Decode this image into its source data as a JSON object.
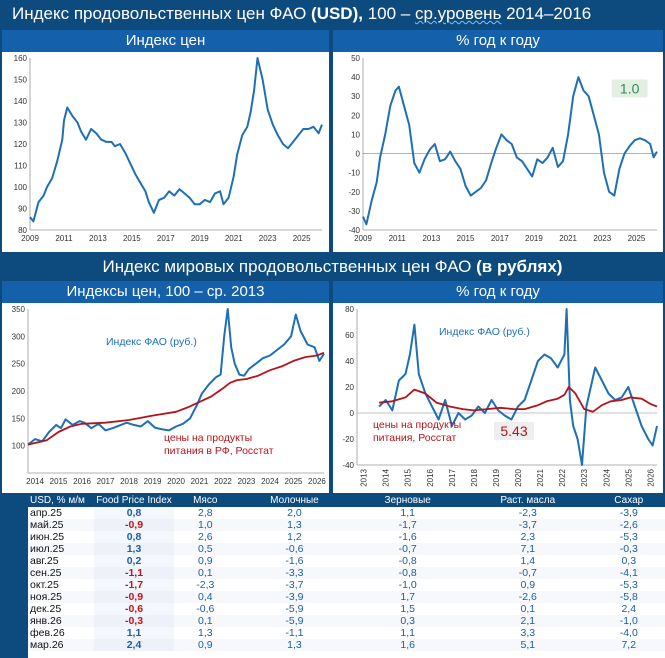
{
  "header": {
    "part1": "Индекс продовольственных цен ФАО ",
    "part2": "(USD),",
    "part3": " 100 – ",
    "part4": "ср.уровень",
    "part5": " 2014–2016"
  },
  "mid_title": {
    "part1": "Индекс мировых продовольственных цен ФАО ",
    "part2": "(в рублях)"
  },
  "colors": {
    "blue": "#1f6fb5",
    "red": "#b3141b",
    "header": "#1560ab",
    "bg": "#0d4a7e"
  },
  "chart_data": [
    {
      "type": "line",
      "title": "Индекс цен",
      "ylim": [
        80,
        160
      ],
      "yticks": [
        "80",
        "90",
        "100",
        "110",
        "120",
        "130",
        "140",
        "150",
        "160"
      ],
      "xticks": [
        "2009",
        "2011",
        "2013",
        "2015",
        "2017",
        "2019",
        "2021",
        "2023",
        "2025"
      ],
      "x_range": [
        2009,
        2026.2
      ],
      "series": [
        {
          "name": "FAO Food Price Index",
          "x": [
            2009,
            2009.2,
            2009.5,
            2009.8,
            2010,
            2010.3,
            2010.6,
            2010.9,
            2011,
            2011.2,
            2011.5,
            2011.8,
            2012,
            2012.3,
            2012.6,
            2012.9,
            2013.2,
            2013.5,
            2013.8,
            2014,
            2014.3,
            2014.6,
            2014.9,
            2015.2,
            2015.5,
            2015.8,
            2016,
            2016.3,
            2016.6,
            2016.9,
            2017.2,
            2017.5,
            2017.8,
            2018.1,
            2018.4,
            2018.7,
            2019,
            2019.3,
            2019.6,
            2019.9,
            2020.2,
            2020.4,
            2020.7,
            2021,
            2021.2,
            2021.5,
            2021.8,
            2022,
            2022.2,
            2022.4,
            2022.7,
            2023,
            2023.3,
            2023.6,
            2023.9,
            2024.2,
            2024.5,
            2024.8,
            2025.1,
            2025.4,
            2025.7,
            2026,
            2026.2
          ],
          "values": [
            86,
            84,
            93,
            96,
            100,
            104,
            112,
            122,
            131,
            137,
            133,
            130,
            126,
            122,
            127,
            125,
            122,
            121,
            121,
            119,
            120,
            116,
            111,
            106,
            102,
            98,
            93,
            88,
            94,
            95,
            98,
            96,
            99,
            97,
            95,
            92,
            92,
            94,
            93,
            97,
            98,
            92,
            95,
            105,
            115,
            124,
            128,
            135,
            145,
            160,
            150,
            136,
            129,
            124,
            120,
            118,
            121,
            124,
            127,
            127,
            128,
            125,
            129
          ]
        }
      ]
    },
    {
      "type": "line",
      "title": "% год к году",
      "ylim": [
        -40,
        50
      ],
      "yticks": [
        "-40",
        "-30",
        "-20",
        "-10",
        "0",
        "10",
        "20",
        "30",
        "40",
        "50"
      ],
      "xticks": [
        "2009",
        "2011",
        "2013",
        "2015",
        "2017",
        "2019",
        "2021",
        "2023",
        "2025"
      ],
      "x_range": [
        2009,
        2026.2
      ],
      "label": "1.0",
      "series": [
        {
          "name": "FAO FPI yoy",
          "x": [
            2009,
            2009.2,
            2009.5,
            2009.8,
            2010,
            2010.3,
            2010.6,
            2010.9,
            2011.1,
            2011.4,
            2011.7,
            2012,
            2012.3,
            2012.6,
            2012.9,
            2013.2,
            2013.5,
            2013.8,
            2014.1,
            2014.4,
            2014.7,
            2015,
            2015.3,
            2015.6,
            2015.9,
            2016.2,
            2016.5,
            2016.8,
            2017.1,
            2017.4,
            2017.7,
            2018,
            2018.3,
            2018.6,
            2018.9,
            2019.2,
            2019.5,
            2019.8,
            2020.1,
            2020.4,
            2020.7,
            2021,
            2021.3,
            2021.6,
            2021.9,
            2022.2,
            2022.5,
            2022.8,
            2023.1,
            2023.4,
            2023.7,
            2024,
            2024.3,
            2024.6,
            2024.9,
            2025.2,
            2025.5,
            2025.8,
            2026,
            2026.2
          ],
          "values": [
            -33,
            -37,
            -25,
            -15,
            -2,
            10,
            25,
            33,
            35,
            25,
            15,
            -5,
            -10,
            -3,
            2,
            5,
            -4,
            -3,
            1,
            -4,
            -8,
            -17,
            -22,
            -20,
            -18,
            -14,
            -5,
            3,
            10,
            7,
            5,
            -2,
            -4,
            -8,
            -12,
            -3,
            -5,
            -2,
            3,
            -7,
            -4,
            10,
            30,
            40,
            33,
            30,
            20,
            10,
            -10,
            -20,
            -22,
            -8,
            0,
            4,
            7,
            8,
            7,
            5,
            -2,
            1
          ]
        }
      ]
    },
    {
      "type": "line",
      "title": "Индексы цен, 100 – ср. 2013",
      "ylim": [
        50,
        350
      ],
      "yticks": [
        "100",
        "150",
        "200",
        "250",
        "300",
        "350"
      ],
      "xticks": [
        "2014",
        "2015",
        "2016",
        "2017",
        "2018",
        "2019",
        "2020",
        "2021",
        "2022",
        "2023",
        "2024",
        "2025",
        "2026"
      ],
      "x_range": [
        2013.7,
        2026.3
      ],
      "annotations": [
        "Индекс ФАО (руб.)",
        "цены на продукты",
        "питания в РФ, Росстат"
      ],
      "series": [
        {
          "name": "Индекс ФАО (руб.)",
          "x": [
            2013.7,
            2014,
            2014.3,
            2014.6,
            2014.9,
            2015.1,
            2015.3,
            2015.6,
            2015.9,
            2016.1,
            2016.4,
            2016.7,
            2017,
            2017.3,
            2017.6,
            2017.9,
            2018.2,
            2018.5,
            2018.8,
            2019.1,
            2019.4,
            2019.7,
            2020,
            2020.3,
            2020.6,
            2020.9,
            2021.1,
            2021.4,
            2021.7,
            2021.9,
            2022.05,
            2022.2,
            2022.35,
            2022.5,
            2022.7,
            2022.9,
            2023.1,
            2023.4,
            2023.7,
            2024,
            2024.3,
            2024.6,
            2024.9,
            2025.1,
            2025.3,
            2025.6,
            2025.9,
            2026.1,
            2026.3
          ],
          "values": [
            102,
            112,
            108,
            125,
            138,
            132,
            148,
            138,
            145,
            142,
            132,
            140,
            128,
            132,
            137,
            142,
            138,
            135,
            145,
            133,
            130,
            128,
            135,
            140,
            150,
            175,
            195,
            212,
            225,
            230,
            300,
            360,
            280,
            250,
            230,
            228,
            240,
            250,
            260,
            265,
            275,
            285,
            300,
            340,
            310,
            285,
            280,
            255,
            268
          ]
        },
        {
          "name": "цены на продукты питания в РФ, Росстат",
          "x": [
            2013.7,
            2014.5,
            2015,
            2015.5,
            2016,
            2017,
            2018,
            2019,
            2020,
            2020.5,
            2021,
            2021.5,
            2022,
            2022.3,
            2022.6,
            2023,
            2023.5,
            2024,
            2024.5,
            2025,
            2025.5,
            2026,
            2026.3
          ],
          "values": [
            102,
            110,
            125,
            135,
            140,
            142,
            147,
            155,
            162,
            170,
            180,
            190,
            205,
            215,
            220,
            222,
            228,
            238,
            245,
            255,
            262,
            265,
            270
          ]
        }
      ]
    },
    {
      "type": "line",
      "title": "% год к году",
      "ylim": [
        -40,
        80
      ],
      "yticks": [
        "-40",
        "-20",
        "0",
        "20",
        "40",
        "60",
        "80"
      ],
      "xticks": [
        "2013",
        "2014",
        "2015",
        "2016",
        "2017",
        "2018",
        "2019",
        "2020",
        "2021",
        "2022",
        "2023",
        "2024",
        "2025",
        "2026"
      ],
      "x_range": [
        2012.7,
        2026.3
      ],
      "label": "5.43",
      "annotations": [
        "Индекс ФАО (руб.)",
        "цены на продукты",
        "питания, Росстат"
      ],
      "series": [
        {
          "name": "Индекс ФАО (руб.) yoy",
          "x": [
            2013.7,
            2014,
            2014.3,
            2014.6,
            2014.9,
            2015.1,
            2015.3,
            2015.5,
            2015.8,
            2016.1,
            2016.4,
            2016.7,
            2017,
            2017.3,
            2017.6,
            2017.9,
            2018.2,
            2018.5,
            2018.8,
            2019.1,
            2019.4,
            2019.7,
            2020,
            2020.3,
            2020.6,
            2020.9,
            2021.2,
            2021.5,
            2021.8,
            2022.1,
            2022.2,
            2022.35,
            2022.5,
            2022.7,
            2022.9,
            2023.1,
            2023.3,
            2023.5,
            2023.8,
            2024.1,
            2024.4,
            2024.7,
            2025,
            2025.3,
            2025.6,
            2025.9,
            2026.1,
            2026.3
          ],
          "values": [
            5,
            10,
            2,
            25,
            30,
            45,
            68,
            30,
            15,
            5,
            -5,
            10,
            -10,
            0,
            -5,
            -2,
            5,
            0,
            10,
            2,
            -2,
            -5,
            5,
            10,
            25,
            40,
            45,
            42,
            35,
            45,
            80,
            10,
            -10,
            -20,
            -40,
            5,
            20,
            35,
            25,
            15,
            10,
            12,
            20,
            5,
            -10,
            -20,
            -25,
            -10
          ]
        },
        {
          "name": "цены на продукты питания, Росстат yoy",
          "x": [
            2013.7,
            2014.3,
            2014.9,
            2015.3,
            2015.8,
            2016.3,
            2016.9,
            2017.5,
            2018,
            2018.6,
            2019.2,
            2019.8,
            2020.3,
            2020.9,
            2021.3,
            2021.8,
            2022.1,
            2022.3,
            2022.6,
            2023,
            2023.4,
            2023.8,
            2024.2,
            2024.7,
            2025.1,
            2025.6,
            2026,
            2026.3
          ],
          "values": [
            8,
            9,
            12,
            18,
            15,
            8,
            5,
            3,
            2,
            3,
            4,
            3,
            3,
            6,
            9,
            11,
            14,
            20,
            15,
            3,
            1,
            6,
            9,
            10,
            12,
            11,
            7,
            5
          ]
        }
      ]
    }
  ],
  "table": {
    "headers": [
      "USD, % м/м",
      "Food Price Index",
      "Мясо",
      "Молочные",
      "Зерновые",
      "Раст. масла",
      "Сахар"
    ],
    "rows": [
      [
        "апр.25",
        "0,8",
        "2,8",
        "2,0",
        "1,1",
        "-2,3",
        "-3,9"
      ],
      [
        "май.25",
        "-0,9",
        "1,0",
        "1,3",
        "-1,7",
        "-3,7",
        "-2,6"
      ],
      [
        "июн.25",
        "0,8",
        "2,6",
        "1,2",
        "-1,6",
        "2,3",
        "-5,3"
      ],
      [
        "июл.25",
        "1,3",
        "0,5",
        "-0,6",
        "-0,7",
        "7,1",
        "-0,3"
      ],
      [
        "авг.25",
        "0,2",
        "0,9",
        "-1,6",
        "-0,8",
        "1,4",
        "0,3"
      ],
      [
        "сен.25",
        "-1,1",
        "0,1",
        "-3,3",
        "-0,8",
        "-0,7",
        "-4,1"
      ],
      [
        "окт.25",
        "-1,7",
        "-2,3",
        "-3,7",
        "-1,0",
        "0,9",
        "-5,3"
      ],
      [
        "ноя.25",
        "-0,9",
        "0,4",
        "-3,9",
        "1,7",
        "-2,6",
        "-5,8"
      ],
      [
        "дек.25",
        "-0,6",
        "-0,6",
        "-5,9",
        "1,5",
        "0,1",
        "2,4"
      ],
      [
        "янв.26",
        "-0,3",
        "0,1",
        "-5,9",
        "0,3",
        "2,1",
        "-1,0"
      ],
      [
        "фев.26",
        "1,1",
        "1,3",
        "-1,1",
        "1,1",
        "3,3",
        "-4,0"
      ],
      [
        "мар.26",
        "2,4",
        "0,9",
        "1,3",
        "1,6",
        "5,1",
        "7,2"
      ]
    ]
  }
}
